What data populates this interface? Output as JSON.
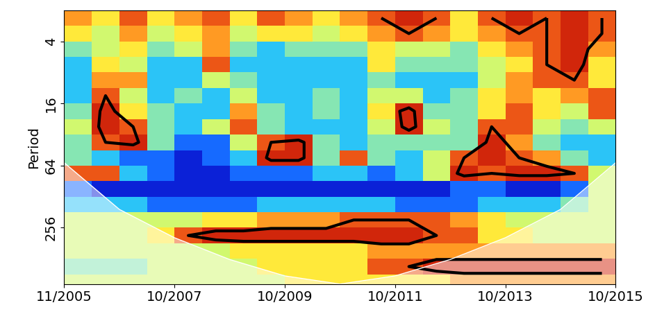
{
  "chart_data": {
    "type": "heatmap",
    "y_label": "Period",
    "log": "y",
    "xlim": [
      0,
      500
    ],
    "xticks": [
      {
        "value": 0,
        "label": "11/2005"
      },
      {
        "value": 100,
        "label": "10/2007"
      },
      {
        "value": 200,
        "label": "10/2009"
      },
      {
        "value": 300,
        "label": "10/2011"
      },
      {
        "value": 400,
        "label": "10/2013"
      },
      {
        "value": 500,
        "label": "10/2015"
      }
    ],
    "ylim": [
      900,
      2
    ],
    "yticks": [
      4,
      16,
      64,
      256
    ],
    "x_edges": [
      0,
      25,
      50,
      75,
      100,
      125,
      150,
      175,
      200,
      225,
      250,
      275,
      300,
      325,
      350,
      375,
      400,
      425,
      450,
      475,
      500
    ],
    "y_edges": [
      2,
      2.83,
      4,
      5.66,
      8,
      11.3,
      16,
      22.6,
      32,
      45.3,
      64,
      90.5,
      128,
      181,
      256,
      362,
      512,
      724,
      900
    ],
    "zlim": [
      0,
      10
    ],
    "contour_level": 8,
    "cells": [
      [
        7,
        6,
        8,
        6,
        7,
        8,
        6,
        8,
        7,
        6,
        7,
        8,
        9,
        8,
        6,
        8,
        9,
        8,
        9,
        8
      ],
      [
        6,
        5,
        7,
        5,
        6,
        7,
        5,
        6,
        6,
        5,
        6,
        7,
        8,
        7,
        6,
        7,
        8,
        8,
        9,
        8
      ],
      [
        4,
        5,
        6,
        4,
        5,
        7,
        4,
        3,
        4,
        4,
        4,
        6,
        5,
        5,
        4,
        6,
        7,
        8,
        9,
        7
      ],
      [
        3,
        6,
        5,
        3,
        3,
        8,
        3,
        3,
        3,
        3,
        3,
        6,
        4,
        4,
        4,
        5,
        6,
        8,
        9,
        6
      ],
      [
        3,
        7,
        7,
        3,
        3,
        5,
        4,
        3,
        3,
        3,
        3,
        4,
        3,
        3,
        3,
        5,
        7,
        8,
        8,
        6
      ],
      [
        3,
        8,
        5,
        3,
        4,
        3,
        5,
        3,
        3,
        4,
        3,
        5,
        5,
        3,
        4,
        6,
        7,
        6,
        7,
        8
      ],
      [
        4,
        9,
        6,
        4,
        3,
        3,
        7,
        4,
        3,
        4,
        3,
        6,
        9,
        4,
        4,
        6,
        8,
        6,
        5,
        8
      ],
      [
        5,
        9,
        8,
        4,
        3,
        5,
        8,
        4,
        3,
        3,
        3,
        5,
        9,
        5,
        4,
        8,
        8,
        5,
        4,
        5
      ],
      [
        4,
        8,
        9,
        4,
        2,
        2,
        5,
        8,
        9,
        4,
        3,
        4,
        4,
        4,
        4,
        9,
        7,
        4,
        3,
        3
      ],
      [
        4,
        3,
        2,
        2,
        1,
        2,
        3,
        9,
        9,
        4,
        8,
        4,
        3,
        5,
        8,
        9,
        8,
        7,
        4,
        3
      ],
      [
        8,
        8,
        3,
        2,
        1,
        1,
        2,
        2,
        2,
        3,
        3,
        2,
        3,
        5,
        9,
        8,
        9,
        9,
        8,
        5
      ],
      [
        2,
        1,
        1,
        1,
        1,
        1,
        1,
        1,
        1,
        1,
        1,
        1,
        1,
        1,
        2,
        2,
        1,
        1,
        2,
        5
      ],
      [
        3,
        3,
        3,
        2,
        2,
        2,
        2,
        3,
        3,
        3,
        3,
        3,
        2,
        2,
        2,
        3,
        3,
        3,
        4,
        5
      ],
      [
        5,
        5,
        5,
        5,
        5,
        6,
        6,
        7,
        7,
        7,
        8,
        8,
        8,
        8,
        7,
        6,
        5,
        5,
        5,
        5
      ],
      [
        5,
        5,
        5,
        6,
        8,
        9,
        9,
        9,
        9,
        9,
        9,
        9,
        9,
        8,
        8,
        6,
        6,
        5,
        5,
        5
      ],
      [
        5,
        5,
        5,
        5,
        5,
        5,
        6,
        6,
        6,
        6,
        6,
        7,
        7,
        7,
        7,
        7,
        7,
        7,
        7,
        7
      ],
      [
        4,
        4,
        4,
        5,
        5,
        5,
        5,
        6,
        6,
        6,
        6,
        8,
        8,
        9,
        9,
        9,
        9,
        9,
        9,
        9
      ],
      [
        5,
        5,
        5,
        5,
        5,
        5,
        5,
        5,
        6,
        6,
        6,
        6,
        6,
        6,
        7,
        7,
        7,
        7,
        7,
        7
      ]
    ],
    "cone_of_influence": {
      "x": [
        0,
        50,
        100,
        150,
        200,
        250,
        300,
        350,
        400,
        450,
        500
      ],
      "period": [
        60,
        170,
        320,
        520,
        750,
        900,
        750,
        520,
        320,
        170,
        60
      ]
    }
  }
}
